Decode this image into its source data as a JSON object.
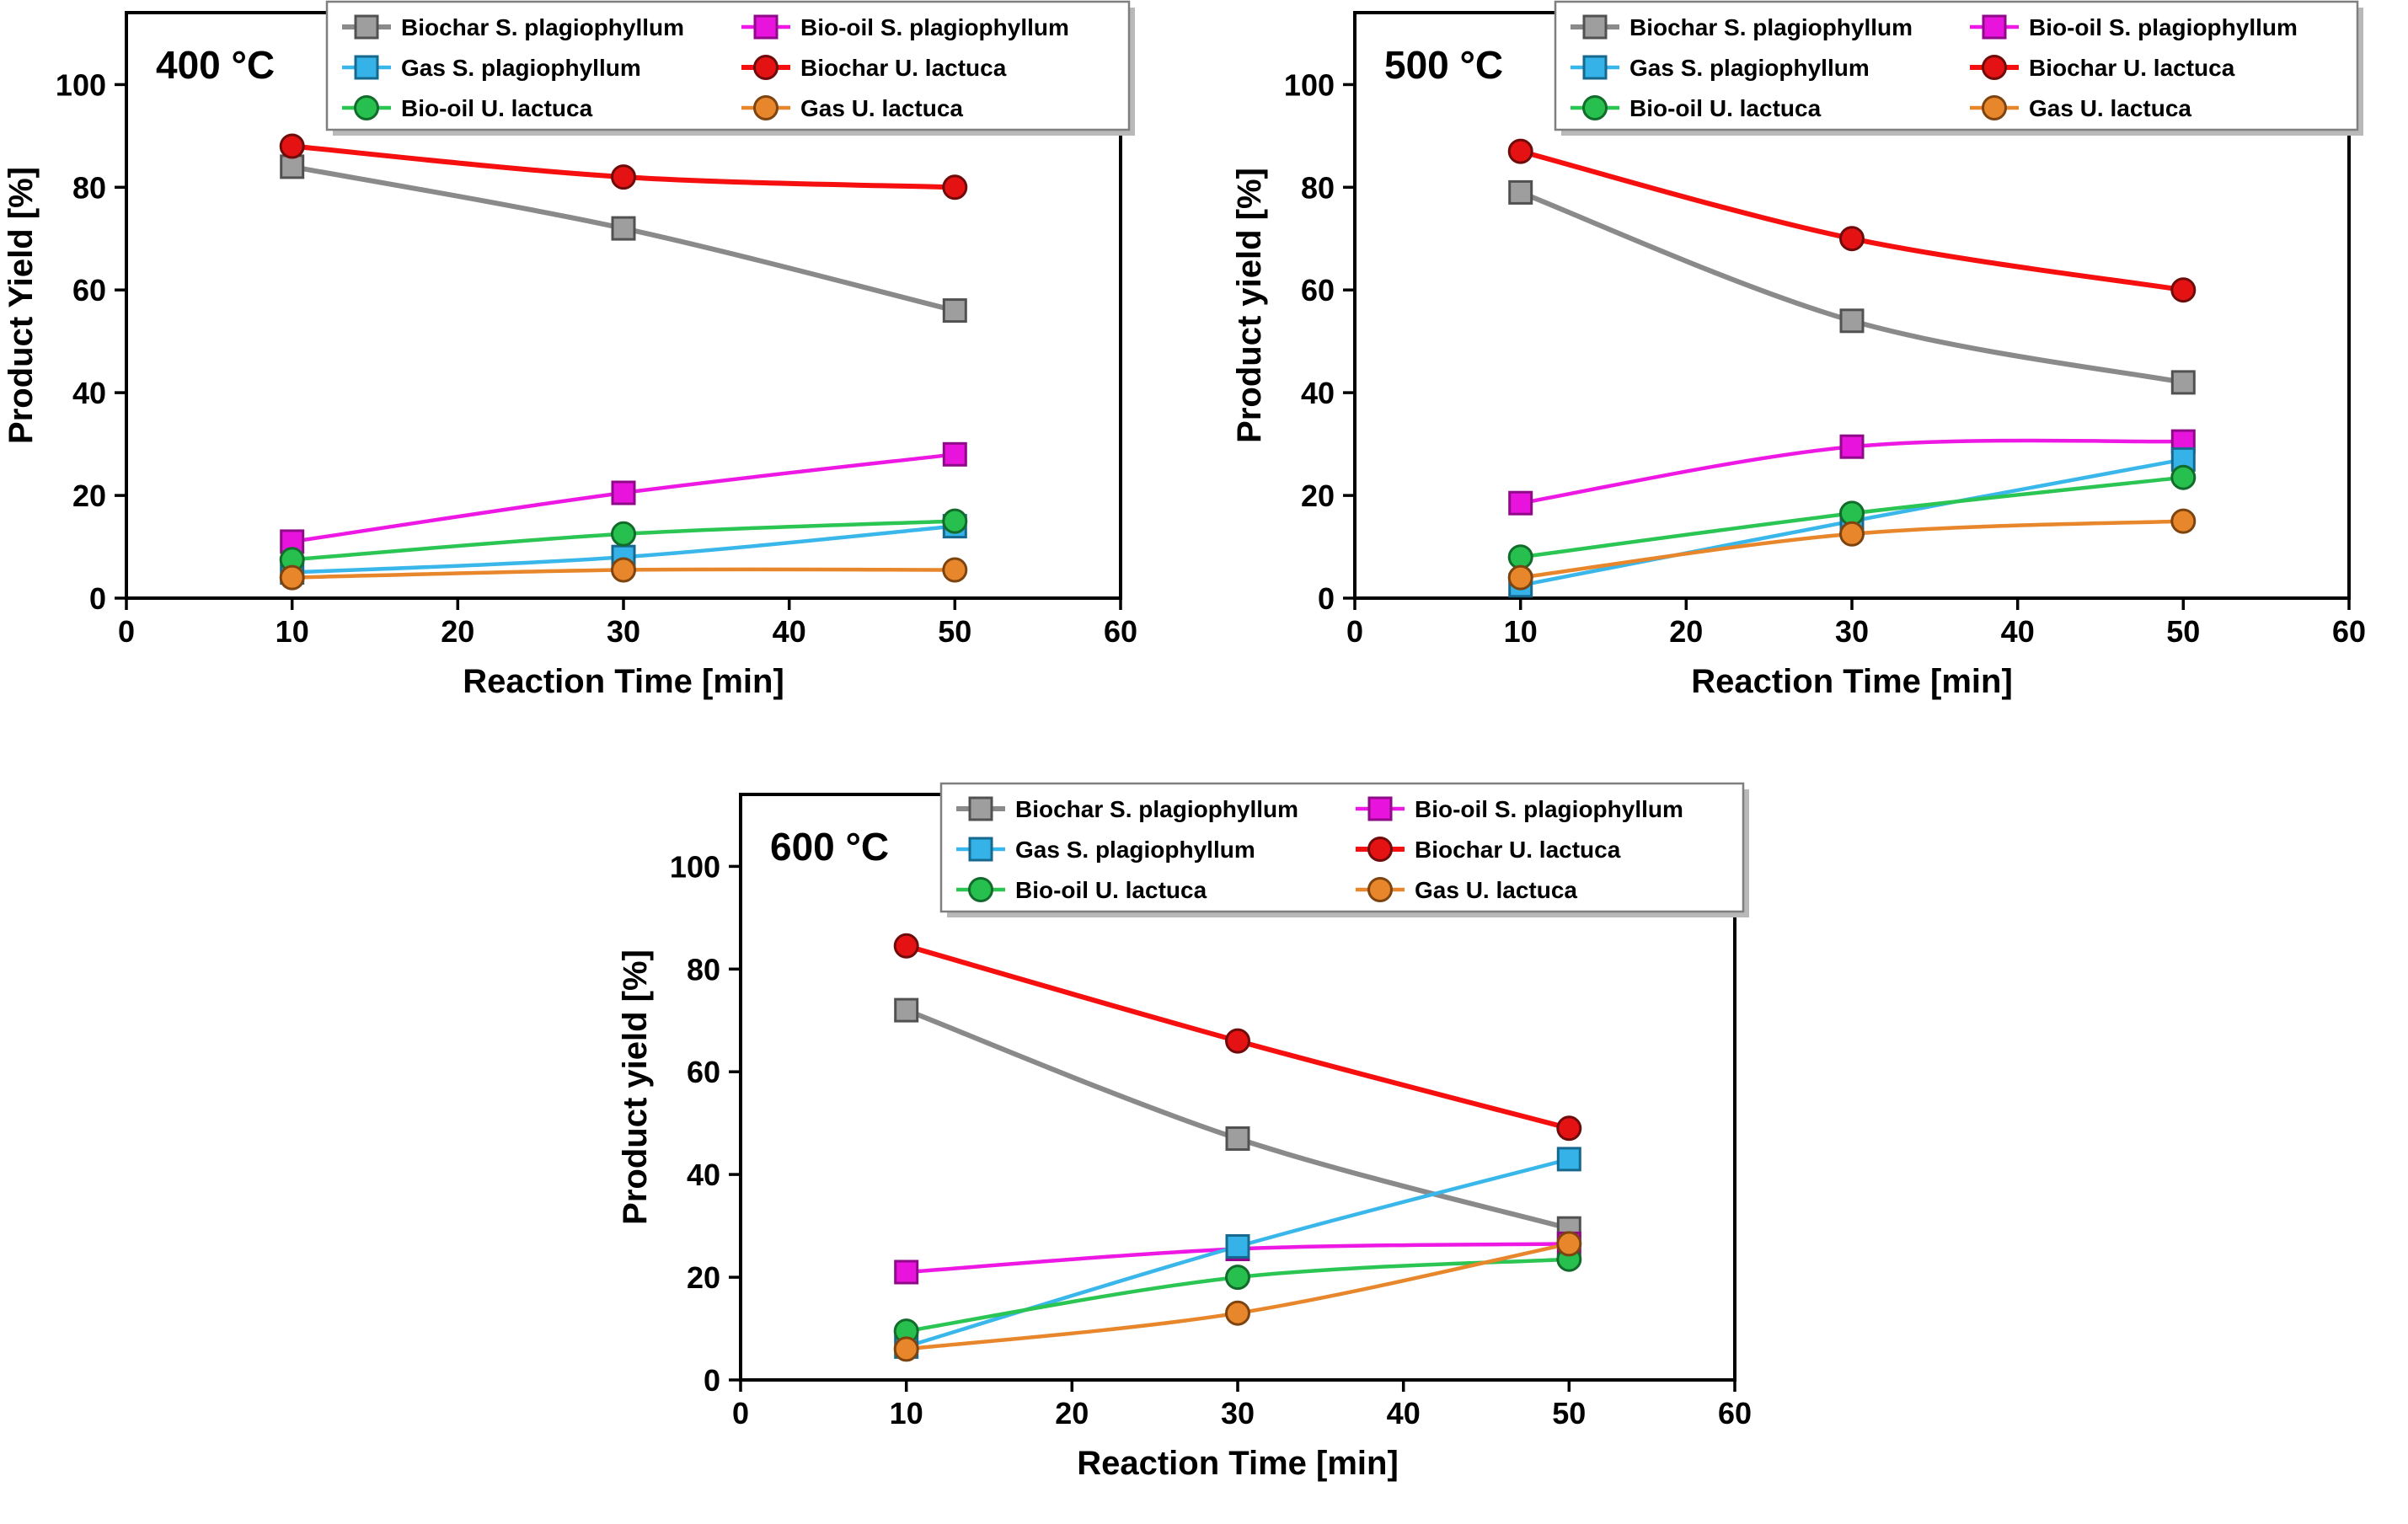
{
  "figure": {
    "background": "#ffffff",
    "axis_color": "#000000",
    "legend_border_color": "#7f7f7f",
    "legend_shadow_color": "#b9b9b9"
  },
  "chart_data": [
    {
      "type": "line",
      "title": "400 °C",
      "xlabel": "Reaction Time [min]",
      "ylabel": "Product Yield [%]",
      "x": [
        10,
        30,
        50
      ],
      "xlim": [
        0,
        60
      ],
      "ylim": [
        0,
        100
      ],
      "xticks": [
        0,
        10,
        20,
        30,
        40,
        50,
        60
      ],
      "yticks": [
        0,
        20,
        40,
        60,
        80,
        100
      ],
      "grid": false,
      "legend_position": "top-right-inside",
      "series": [
        {
          "name": "Biochar S. plagiophyllum",
          "marker": "square",
          "color": "#8a8a8a",
          "fill": "#9e9e9e",
          "edge": "#515151",
          "lw": 6,
          "values": [
            84,
            72,
            56
          ]
        },
        {
          "name": "Bio-oil S. plagiophyllum",
          "marker": "square",
          "color": "#ee18e4",
          "fill": "#e813dc",
          "edge": "#8f0a88",
          "lw": 4.5,
          "values": [
            11,
            20.5,
            28
          ]
        },
        {
          "name": "Gas S. plagiophyllum",
          "marker": "square",
          "color": "#3ab7ea",
          "fill": "#35b3e8",
          "edge": "#17688e",
          "lw": 4.5,
          "values": [
            5,
            8,
            14
          ]
        },
        {
          "name": "Biochar U. lactuca",
          "marker": "circle",
          "color": "#f50f0f",
          "fill": "#e41212",
          "edge": "#6e0b0b",
          "lw": 6,
          "values": [
            88,
            82,
            80
          ]
        },
        {
          "name": "Bio-oil U. lactuca",
          "marker": "circle",
          "color": "#2bc553",
          "fill": "#27c04f",
          "edge": "#126b2b",
          "lw": 4.5,
          "values": [
            7.5,
            12.5,
            15
          ]
        },
        {
          "name": "Gas U. lactuca",
          "marker": "circle",
          "color": "#e8862c",
          "fill": "#e8862c",
          "edge": "#7d4410",
          "lw": 4.5,
          "values": [
            4,
            5.5,
            5.5
          ]
        }
      ]
    },
    {
      "type": "line",
      "title": "500 °C",
      "xlabel": "Reaction Time [min]",
      "ylabel": "Product yield [%]",
      "x": [
        10,
        30,
        50
      ],
      "xlim": [
        0,
        60
      ],
      "ylim": [
        0,
        100
      ],
      "xticks": [
        0,
        10,
        20,
        30,
        40,
        50,
        60
      ],
      "yticks": [
        0,
        20,
        40,
        60,
        80,
        100
      ],
      "grid": false,
      "legend_position": "top-right-inside",
      "series": [
        {
          "name": "Biochar S. plagiophyllum",
          "marker": "square",
          "color": "#8a8a8a",
          "fill": "#9e9e9e",
          "edge": "#515151",
          "lw": 6,
          "values": [
            79,
            54,
            42
          ]
        },
        {
          "name": "Bio-oil S. plagiophyllum",
          "marker": "square",
          "color": "#ee18e4",
          "fill": "#e813dc",
          "edge": "#8f0a88",
          "lw": 4.5,
          "values": [
            18.5,
            29.5,
            30.5
          ]
        },
        {
          "name": "Gas S. plagiophyllum",
          "marker": "square",
          "color": "#3ab7ea",
          "fill": "#35b3e8",
          "edge": "#17688e",
          "lw": 4.5,
          "values": [
            2.5,
            15,
            27
          ]
        },
        {
          "name": "Biochar U. lactuca",
          "marker": "circle",
          "color": "#f50f0f",
          "fill": "#e41212",
          "edge": "#6e0b0b",
          "lw": 6,
          "values": [
            87,
            70,
            60
          ]
        },
        {
          "name": "Bio-oil U. lactuca",
          "marker": "circle",
          "color": "#2bc553",
          "fill": "#27c04f",
          "edge": "#126b2b",
          "lw": 4.5,
          "values": [
            8,
            16.5,
            23.5
          ]
        },
        {
          "name": "Gas U. lactuca",
          "marker": "circle",
          "color": "#e8862c",
          "fill": "#e8862c",
          "edge": "#7d4410",
          "lw": 4.5,
          "values": [
            4,
            12.5,
            15
          ]
        }
      ]
    },
    {
      "type": "line",
      "title": "600 °C",
      "xlabel": "Reaction Time [min]",
      "ylabel": "Product yield [%]",
      "x": [
        10,
        30,
        50
      ],
      "xlim": [
        0,
        60
      ],
      "ylim": [
        0,
        100
      ],
      "xticks": [
        0,
        10,
        20,
        30,
        40,
        50,
        60
      ],
      "yticks": [
        0,
        20,
        40,
        60,
        80,
        100
      ],
      "grid": false,
      "legend_position": "top-right-inside",
      "series": [
        {
          "name": "Biochar S. plagiophyllum",
          "marker": "square",
          "color": "#8a8a8a",
          "fill": "#9e9e9e",
          "edge": "#515151",
          "lw": 6,
          "values": [
            72,
            47,
            29.5
          ]
        },
        {
          "name": "Bio-oil S. plagiophyllum",
          "marker": "square",
          "color": "#ee18e4",
          "fill": "#e813dc",
          "edge": "#8f0a88",
          "lw": 4.5,
          "values": [
            21,
            25.5,
            26.5
          ]
        },
        {
          "name": "Gas S. plagiophyllum",
          "marker": "square",
          "color": "#3ab7ea",
          "fill": "#35b3e8",
          "edge": "#17688e",
          "lw": 4.5,
          "values": [
            6.5,
            26,
            43
          ]
        },
        {
          "name": "Biochar U. lactuca",
          "marker": "circle",
          "color": "#f50f0f",
          "fill": "#e41212",
          "edge": "#6e0b0b",
          "lw": 6,
          "values": [
            84.5,
            66,
            49
          ]
        },
        {
          "name": "Bio-oil U. lactuca",
          "marker": "circle",
          "color": "#2bc553",
          "fill": "#27c04f",
          "edge": "#126b2b",
          "lw": 4.5,
          "values": [
            9.5,
            20,
            23.5
          ]
        },
        {
          "name": "Gas U. lactuca",
          "marker": "circle",
          "color": "#e8862c",
          "fill": "#e8862c",
          "edge": "#7d4410",
          "lw": 4.5,
          "values": [
            6,
            13,
            26.5
          ]
        }
      ]
    }
  ]
}
